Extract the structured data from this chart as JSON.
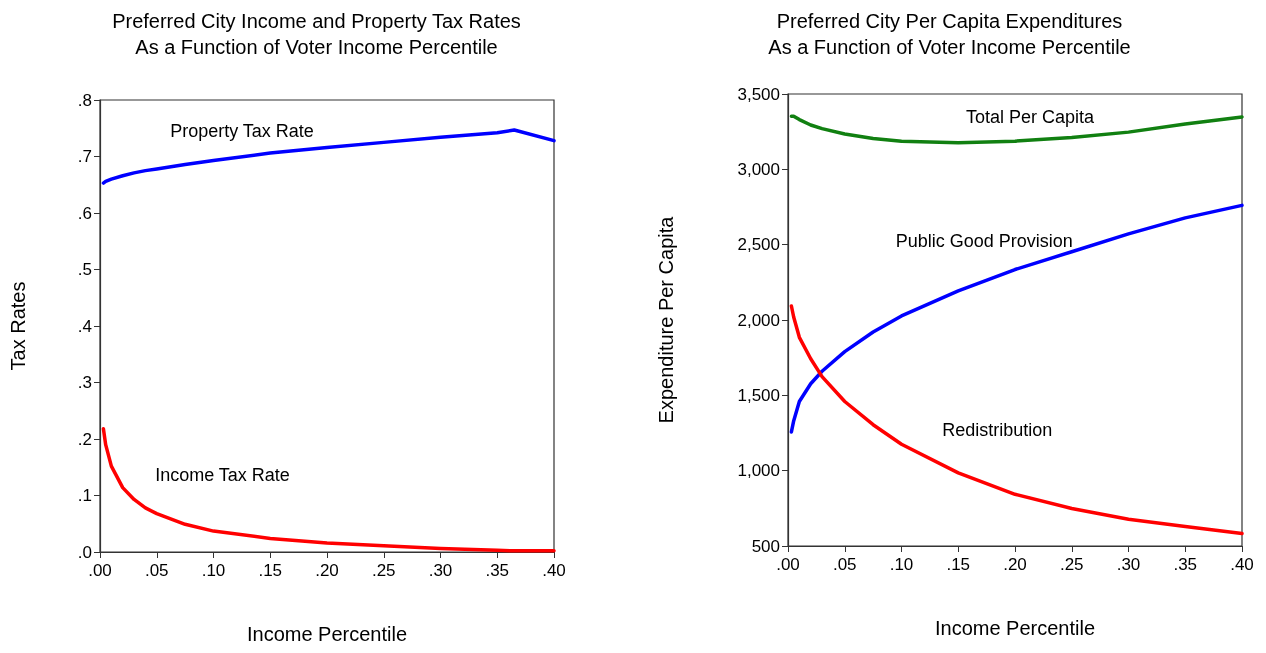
{
  "chart_data": [
    {
      "type": "line",
      "title": "Preferred City Income and Property Tax Rates",
      "subtitle": "As a Function of Voter Income Percentile",
      "xlabel": "Income Percentile",
      "ylabel": "Tax Rates",
      "marker": "none",
      "line_style": "solid",
      "grid": false,
      "x": [
        0.003,
        0.005,
        0.01,
        0.02,
        0.03,
        0.04,
        0.05,
        0.075,
        0.1,
        0.15,
        0.2,
        0.25,
        0.3,
        0.35,
        0.365,
        0.4
      ],
      "series": [
        {
          "name": "Property Tax Rate",
          "color": "#0000ff",
          "values": [
            0.653,
            0.656,
            0.66,
            0.666,
            0.671,
            0.675,
            0.678,
            0.686,
            0.693,
            0.706,
            0.716,
            0.725,
            0.734,
            0.742,
            0.747,
            0.728
          ]
        },
        {
          "name": "Income Tax Rate",
          "color": "#ff0000",
          "values": [
            0.218,
            0.19,
            0.152,
            0.114,
            0.093,
            0.078,
            0.068,
            0.049,
            0.037,
            0.024,
            0.016,
            0.011,
            0.006,
            0.003,
            0.002,
            0.002
          ]
        }
      ],
      "xlim": [
        0,
        0.4
      ],
      "ylim": [
        0,
        0.8
      ],
      "xticks": [
        {
          "value": 0,
          "label": ".00"
        },
        {
          "value": 0.05,
          "label": ".05"
        },
        {
          "value": 0.1,
          "label": ".10"
        },
        {
          "value": 0.15,
          "label": ".15"
        },
        {
          "value": 0.2,
          "label": ".20"
        },
        {
          "value": 0.25,
          "label": ".25"
        },
        {
          "value": 0.3,
          "label": ".30"
        },
        {
          "value": 0.35,
          "label": ".35"
        },
        {
          "value": 0.4,
          "label": ".40"
        }
      ],
      "yticks": [
        {
          "value": 0,
          "label": ".0"
        },
        {
          "value": 0.1,
          "label": ".1"
        },
        {
          "value": 0.2,
          "label": ".2"
        },
        {
          "value": 0.3,
          "label": ".3"
        },
        {
          "value": 0.4,
          "label": ".4"
        },
        {
          "value": 0.5,
          "label": ".5"
        },
        {
          "value": 0.6,
          "label": ".6"
        },
        {
          "value": 0.7,
          "label": ".7"
        },
        {
          "value": 0.8,
          "label": ".8"
        }
      ]
    },
    {
      "type": "line",
      "title": "Preferred City Per Capita Expenditures",
      "subtitle": "As a Function of Voter Income Percentile",
      "xlabel": "Income Percentile",
      "ylabel": "Expenditure Per Capita",
      "marker": "none",
      "line_style": "solid",
      "grid": false,
      "x": [
        0.003,
        0.005,
        0.01,
        0.02,
        0.03,
        0.05,
        0.075,
        0.1,
        0.15,
        0.2,
        0.25,
        0.3,
        0.35,
        0.4
      ],
      "series": [
        {
          "name": "Total Per Capita",
          "color": "#118011",
          "values": [
            3353,
            3353,
            3330,
            3294,
            3270,
            3235,
            3205,
            3187,
            3176,
            3187,
            3211,
            3247,
            3301,
            3348
          ]
        },
        {
          "name": "Public Good Provision",
          "color": "#0000ff",
          "values": [
            1257,
            1330,
            1459,
            1577,
            1660,
            1790,
            1920,
            2027,
            2193,
            2335,
            2453,
            2572,
            2678,
            2761
          ]
        },
        {
          "name": "Redistribution",
          "color": "#ff0000",
          "values": [
            2093,
            2020,
            1885,
            1743,
            1624,
            1459,
            1305,
            1175,
            985,
            843,
            749,
            678,
            630,
            583
          ]
        }
      ],
      "xlim": [
        0,
        0.4
      ],
      "ylim": [
        500,
        3500
      ],
      "xticks": [
        {
          "value": 0,
          "label": ".00"
        },
        {
          "value": 0.05,
          "label": ".05"
        },
        {
          "value": 0.1,
          "label": ".10"
        },
        {
          "value": 0.15,
          "label": ".15"
        },
        {
          "value": 0.2,
          "label": ".20"
        },
        {
          "value": 0.25,
          "label": ".25"
        },
        {
          "value": 0.3,
          "label": ".30"
        },
        {
          "value": 0.35,
          "label": ".35"
        },
        {
          "value": 0.4,
          "label": ".40"
        }
      ],
      "yticks": [
        500,
        {
          "value": 1000,
          "label": "1,000"
        },
        {
          "value": 1500,
          "label": "1,500"
        },
        {
          "value": 2000,
          "label": "2,000"
        },
        {
          "value": 2500,
          "label": "2,500"
        },
        {
          "value": 3000,
          "label": "3,000"
        },
        {
          "value": 3500,
          "label": "3,500"
        }
      ]
    }
  ]
}
